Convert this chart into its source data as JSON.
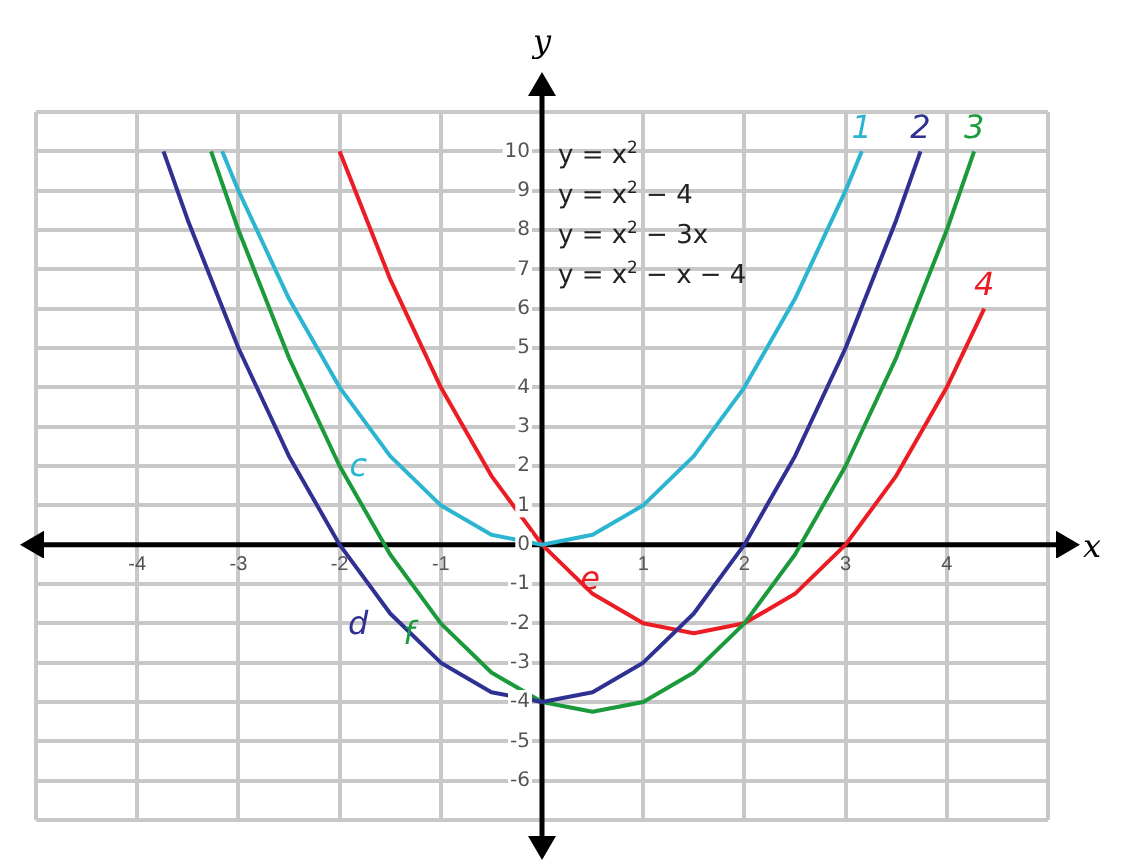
{
  "chart_data": {
    "type": "line",
    "xlabel": "x",
    "ylabel": "y",
    "xlim": [
      -5,
      5
    ],
    "ylim": [
      -7,
      11
    ],
    "xticks": [
      {
        "value": -5,
        "label": null
      },
      -4,
      -3,
      -2,
      -1,
      {
        "value": 0,
        "label": null
      },
      1,
      2,
      3,
      4,
      {
        "value": 5,
        "label": null
      }
    ],
    "yticks": [
      {
        "value": -7,
        "label": null
      },
      -6,
      -5,
      -4,
      -3,
      -2,
      -1,
      0,
      1,
      2,
      3,
      4,
      5,
      6,
      7,
      8,
      9,
      10,
      {
        "value": 11,
        "label": null
      }
    ],
    "grid": true,
    "legend": false,
    "marker": "none",
    "line_style": "solid",
    "series": [
      {
        "name": "1",
        "color": "#2bb5d0",
        "x": [
          -3.16,
          -3,
          -2.5,
          -2,
          -1.5,
          -1,
          -0.5,
          0,
          0.5,
          1,
          1.5,
          2,
          2.5,
          3,
          3.16
        ],
        "values": [
          10,
          9,
          6.25,
          4,
          2.25,
          1,
          0.25,
          0,
          0.25,
          1,
          2.25,
          4,
          6.25,
          9,
          10
        ]
      },
      {
        "name": "2",
        "color": "#2e3192",
        "x": [
          -3.74,
          -3.5,
          -3,
          -2.5,
          -2,
          -1.5,
          -1,
          -0.5,
          0,
          0.5,
          1,
          1.5,
          2,
          2.5,
          3,
          3.5,
          3.74
        ],
        "values": [
          10,
          8.25,
          5,
          2.25,
          0,
          -1.75,
          -3,
          -3.75,
          -4,
          -3.75,
          -3,
          -1.75,
          0,
          2.25,
          5,
          8.25,
          10
        ]
      },
      {
        "name": "3",
        "color": "#1a9a3a",
        "x": [
          -3.27,
          -3,
          -2.5,
          -2,
          -1.5,
          -1,
          -0.5,
          0,
          0.5,
          1,
          1.5,
          2,
          2.5,
          3,
          3.5,
          4,
          4.27
        ],
        "values": [
          10,
          8,
          4.75,
          2,
          -0.25,
          -2,
          -3.25,
          -4,
          -4.25,
          -4,
          -3.25,
          -2,
          -0.25,
          2,
          4.75,
          8,
          10
        ]
      },
      {
        "name": "4",
        "color": "#ec1c24",
        "x": [
          -2,
          -1.5,
          -1,
          -0.5,
          0,
          0.5,
          1,
          1.5,
          2,
          2.5,
          3,
          3.5,
          4,
          4.37
        ],
        "values": [
          10,
          6.75,
          4,
          1.75,
          0,
          -1.25,
          -2,
          -2.25,
          -2,
          -1.25,
          0,
          1.75,
          4,
          6
        ]
      }
    ],
    "annotations": [
      "y = x$^{2}$",
      "y = x$^{2}$ − 4",
      "y = x$^{2}$ − 3x",
      "y = x$^{2}$ − x − 4",
      "c",
      "d",
      "f",
      "e"
    ]
  }
}
